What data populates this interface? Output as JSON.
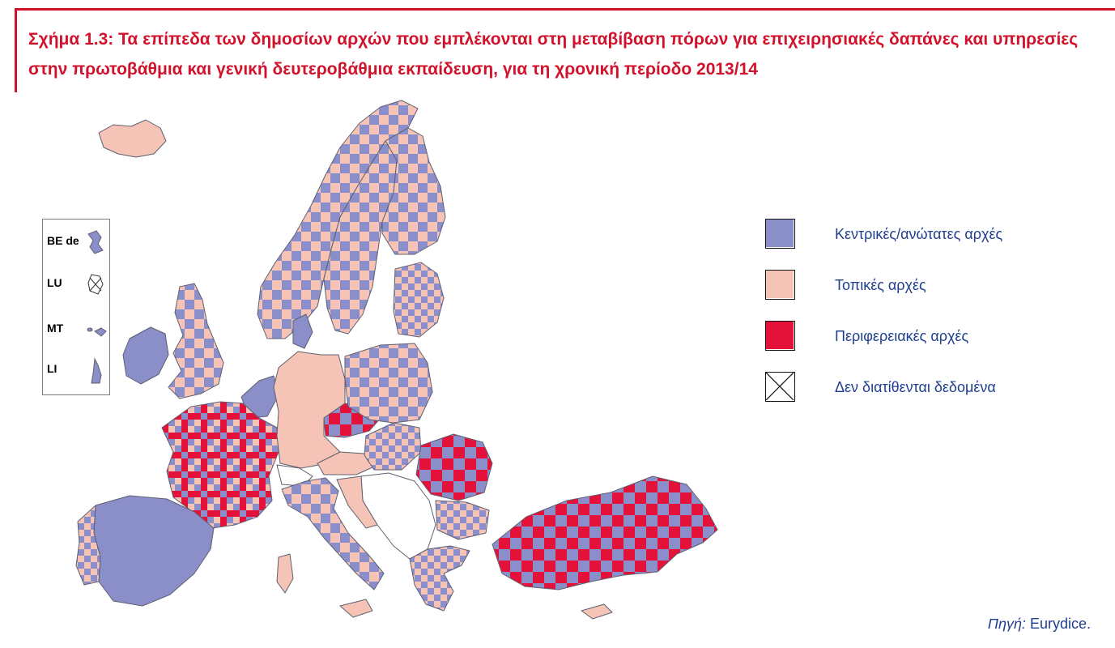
{
  "figure": {
    "title": "Σχήμα 1.3: Τα επίπεδα των δημοσίων αρχών που εμπλέκονται στη μεταβίβαση πόρων για επιχειρησιακές δαπάνες και υπηρεσίες στην πρωτοβάθμια και γενική δευτεροβάθμια εκπαίδευση, για τη χρονική περίοδο 2013/14",
    "accent_color": "#d0122b",
    "title_color": "#d0122b",
    "text_color": "#1f3f8f"
  },
  "legend": {
    "items": [
      {
        "label": "Κεντρικές/ανώτατες αρχές",
        "color": "#8a8fc9",
        "icon": "central-authority-swatch"
      },
      {
        "label": "Τοπικές αρχές",
        "color": "#f6c4b6",
        "icon": "local-authority-swatch"
      },
      {
        "label": "Περιφερειακές αρχές",
        "color": "#e4123a",
        "icon": "regional-authority-swatch"
      },
      {
        "label": "Δεν διατίθενται δεδομένα",
        "color": "#ffffff",
        "icon": "no-data-swatch"
      }
    ]
  },
  "insets": [
    {
      "label": "BE de",
      "pattern": "central"
    },
    {
      "label": "LU",
      "pattern": "nodata"
    },
    {
      "label": "MT",
      "pattern": "central"
    },
    {
      "label": "LI",
      "pattern": "central"
    }
  ],
  "source": {
    "label": "Πηγή:",
    "value": "Eurydice."
  },
  "colors": {
    "central": "#8a8fc9",
    "local": "#f6c4b6",
    "regional": "#e4123a",
    "border": "#6a6a7a"
  }
}
